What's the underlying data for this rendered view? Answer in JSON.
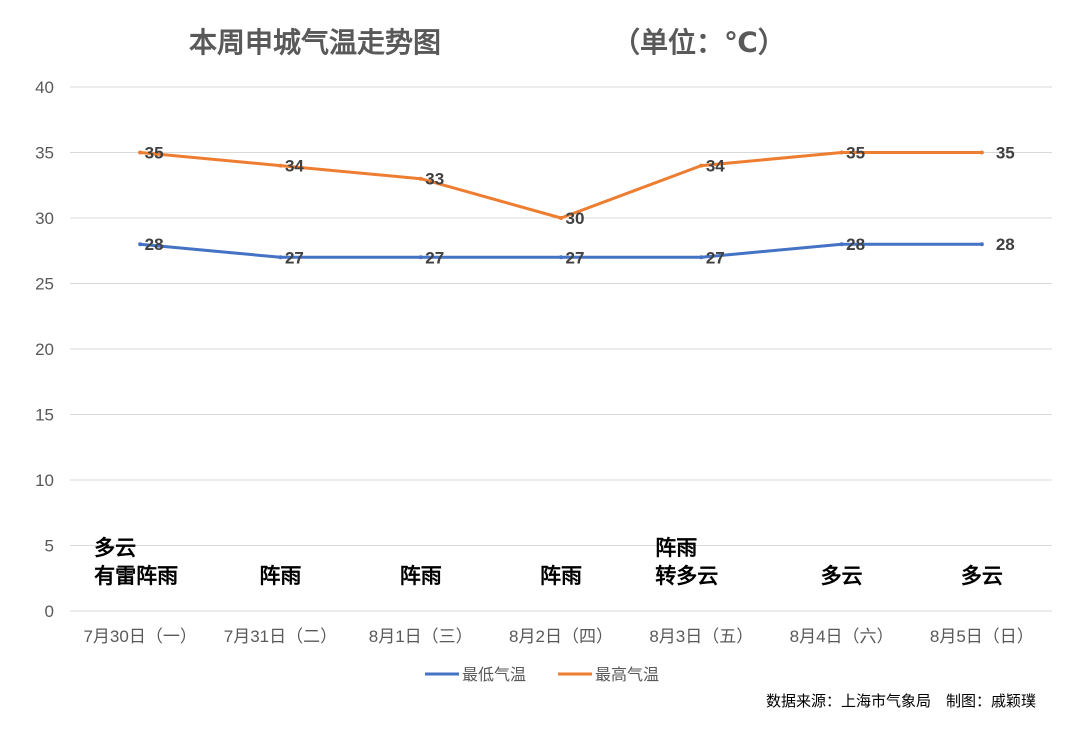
{
  "chart_data": {
    "type": "line",
    "title": "本周申城气温走势图",
    "title_unit": "（单位：℃）",
    "categories": [
      "7月30日（一）",
      "7月31日（二）",
      "8月1日（三）",
      "8月2日（四）",
      "8月3日（五）",
      "8月4日（六）",
      "8月5日（日）"
    ],
    "series": [
      {
        "name": "最低气温",
        "values": [
          28,
          27,
          27,
          27,
          27,
          28,
          28
        ],
        "color": "#4472C4"
      },
      {
        "name": "最高气温",
        "values": [
          35,
          34,
          33,
          30,
          34,
          35,
          35
        ],
        "color": "#ED7D31"
      }
    ],
    "weather": [
      [
        "多云",
        "有雷阵雨"
      ],
      [
        "阵雨"
      ],
      [
        "阵雨"
      ],
      [
        "阵雨"
      ],
      [
        "阵雨",
        "转多云"
      ],
      [
        "多云"
      ],
      [
        "多云"
      ]
    ],
    "yticks": [
      0,
      5,
      10,
      15,
      20,
      25,
      30,
      35,
      40
    ],
    "ylim": [
      0,
      40
    ],
    "grid": true,
    "legend_position": "bottom",
    "source": "数据来源：上海市气象局　制图：戚颖璞"
  }
}
